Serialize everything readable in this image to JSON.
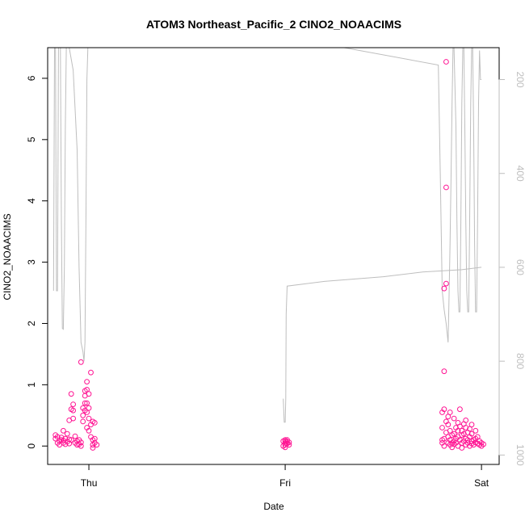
{
  "chart_data": {
    "type": "scatter",
    "title": "ATOM3 Northeast_Pacific_2 CINO2_NOAACIMS",
    "xlabel": "Date",
    "ylabel": "CINO2_NOAACIMS",
    "x_ticks": [
      {
        "label": "Thu",
        "value": 1.0
      },
      {
        "label": "Fri",
        "value": 2.0
      },
      {
        "label": "Sat",
        "value": 3.0
      }
    ],
    "xlim": [
      0.79,
      3.09
    ],
    "ylim": [
      -0.3,
      6.5
    ],
    "y_ticks": [
      0,
      1,
      2,
      3,
      4,
      5,
      6
    ],
    "right_axis": {
      "color": "#bebebe",
      "ticks": [
        200,
        400,
        600,
        800,
        1000
      ],
      "lim": [
        1020,
        132
      ]
    },
    "grid": false,
    "series": [
      {
        "marker": "open-circle",
        "color": "#ff1493",
        "points": [
          [
            0.83,
            0.18
          ],
          [
            0.83,
            0.12
          ],
          [
            0.84,
            0.05
          ],
          [
            0.84,
            0.15
          ],
          [
            0.85,
            0.08
          ],
          [
            0.85,
            0.02
          ],
          [
            0.86,
            0.1
          ],
          [
            0.86,
            0.14
          ],
          [
            0.87,
            0.05
          ],
          [
            0.87,
            0.25
          ],
          [
            0.87,
            0.09
          ],
          [
            0.88,
            0.12
          ],
          [
            0.88,
            0.03
          ],
          [
            0.89,
            0.07
          ],
          [
            0.89,
            0.2
          ],
          [
            0.9,
            0.11
          ],
          [
            0.9,
            0.04
          ],
          [
            0.9,
            0.42
          ],
          [
            0.91,
            0.85
          ],
          [
            0.91,
            0.6
          ],
          [
            0.91,
            0.1
          ],
          [
            0.92,
            0.45
          ],
          [
            0.92,
            0.68
          ],
          [
            0.92,
            0.58
          ],
          [
            0.93,
            0.16
          ],
          [
            0.93,
            0.05
          ],
          [
            0.94,
            0.08
          ],
          [
            0.94,
            0.02
          ],
          [
            0.95,
            0.1
          ],
          [
            0.95,
            0.03
          ],
          [
            0.96,
            0.06
          ],
          [
            0.96,
            0.0
          ],
          [
            0.96,
            1.37
          ],
          [
            0.97,
            0.5
          ],
          [
            0.97,
            0.4
          ],
          [
            0.97,
            0.62
          ],
          [
            0.98,
            0.58
          ],
          [
            0.98,
            0.7
          ],
          [
            0.98,
            0.82
          ],
          [
            0.98,
            0.9
          ],
          [
            0.99,
            0.55
          ],
          [
            0.99,
            0.7
          ],
          [
            0.99,
            0.92
          ],
          [
            0.99,
            1.05
          ],
          [
            1.0,
            0.85
          ],
          [
            1.0,
            0.62
          ],
          [
            1.0,
            0.45
          ],
          [
            1.01,
            1.2
          ],
          [
            1.01,
            0.35
          ],
          [
            1.01,
            0.15
          ],
          [
            1.02,
            0.4
          ],
          [
            1.02,
            0.1
          ],
          [
            1.02,
            0.02
          ],
          [
            1.02,
            -0.03
          ],
          [
            1.03,
            0.38
          ],
          [
            1.03,
            0.12
          ],
          [
            1.03,
            0.05
          ],
          [
            1.04,
            0.02
          ],
          [
            1.0,
            0.25
          ],
          [
            0.99,
            0.3
          ],
          [
            1.99,
            0.0
          ],
          [
            1.99,
            0.08
          ],
          [
            2.0,
            0.02
          ],
          [
            2.0,
            0.1
          ],
          [
            2.0,
            0.05
          ],
          [
            2.0,
            -0.02
          ],
          [
            2.01,
            0.07
          ],
          [
            2.01,
            0.04
          ],
          [
            2.01,
            0.1
          ],
          [
            2.02,
            0.02
          ],
          [
            2.02,
            0.06
          ],
          [
            2.0,
            0.08
          ],
          [
            2.8,
            0.05
          ],
          [
            2.8,
            0.3
          ],
          [
            2.8,
            0.1
          ],
          [
            2.8,
            0.55
          ],
          [
            2.81,
            0.6
          ],
          [
            2.81,
            0.12
          ],
          [
            2.81,
            0.0
          ],
          [
            2.81,
            1.22
          ],
          [
            2.81,
            2.57
          ],
          [
            2.82,
            2.65
          ],
          [
            2.82,
            4.22
          ],
          [
            2.82,
            6.27
          ],
          [
            2.82,
            0.22
          ],
          [
            2.82,
            0.4
          ],
          [
            2.83,
            0.05
          ],
          [
            2.83,
            0.15
          ],
          [
            2.83,
            0.35
          ],
          [
            2.84,
            0.02
          ],
          [
            2.84,
            0.1
          ],
          [
            2.84,
            0.25
          ],
          [
            2.85,
            0.05
          ],
          [
            2.85,
            0.18
          ],
          [
            2.85,
            -0.02
          ],
          [
            2.86,
            0.08
          ],
          [
            2.86,
            0.2
          ],
          [
            2.86,
            0.03
          ],
          [
            2.87,
            0.12
          ],
          [
            2.87,
            0.3
          ],
          [
            2.87,
            0.05
          ],
          [
            2.88,
            0.15
          ],
          [
            2.88,
            0.0
          ],
          [
            2.88,
            0.25
          ],
          [
            2.89,
            0.1
          ],
          [
            2.89,
            0.32
          ],
          [
            2.89,
            0.6
          ],
          [
            2.9,
            0.05
          ],
          [
            2.9,
            0.18
          ],
          [
            2.9,
            -0.03
          ],
          [
            2.91,
            0.2
          ],
          [
            2.91,
            0.36
          ],
          [
            2.91,
            0.08
          ],
          [
            2.92,
            0.12
          ],
          [
            2.92,
            0.3
          ],
          [
            2.92,
            0.02
          ],
          [
            2.93,
            0.22
          ],
          [
            2.93,
            0.05
          ],
          [
            2.93,
            0.1
          ],
          [
            2.94,
            0.15
          ],
          [
            2.94,
            0.28
          ],
          [
            2.94,
            0.0
          ],
          [
            2.95,
            0.08
          ],
          [
            2.95,
            0.2
          ],
          [
            2.95,
            0.04
          ],
          [
            2.96,
            0.1
          ],
          [
            2.96,
            0.02
          ],
          [
            2.97,
            0.12
          ],
          [
            2.97,
            0.06
          ],
          [
            2.98,
            0.04
          ],
          [
            2.98,
            0.15
          ],
          [
            2.99,
            0.02
          ],
          [
            2.99,
            0.08
          ],
          [
            3.0,
            0.05
          ],
          [
            3.0,
            0.0
          ],
          [
            3.01,
            0.03
          ],
          [
            2.84,
            0.55
          ],
          [
            2.86,
            0.45
          ],
          [
            2.88,
            0.38
          ],
          [
            2.9,
            0.25
          ],
          [
            2.92,
            0.42
          ],
          [
            2.95,
            0.35
          ],
          [
            2.97,
            0.25
          ],
          [
            2.83,
            0.48
          ]
        ]
      },
      {
        "marker": "line",
        "color": "#bebebe",
        "axis": "right",
        "points": [
          [
            0.82,
            650
          ],
          [
            0.825,
            132
          ],
          [
            0.83,
            132
          ],
          [
            0.835,
            650
          ],
          [
            0.84,
            650
          ],
          [
            0.845,
            132
          ],
          [
            0.85,
            132
          ],
          [
            0.855,
            132
          ],
          [
            0.86,
            500
          ],
          [
            0.865,
            730
          ],
          [
            0.87,
            732
          ],
          [
            0.875,
            600
          ],
          [
            0.88,
            300
          ],
          [
            0.885,
            132
          ],
          [
            0.9,
            132
          ],
          [
            0.92,
            180
          ],
          [
            0.94,
            350
          ],
          [
            0.95,
            600
          ],
          [
            0.96,
            760
          ],
          [
            0.97,
            780
          ],
          [
            0.975,
            800
          ],
          [
            0.98,
            760
          ],
          [
            0.985,
            500
          ],
          [
            0.99,
            200
          ],
          [
            0.995,
            132
          ],
          [
            1.0,
            132
          ],
          [
            1.05,
            132
          ],
          [
            1.9,
            132
          ],
          [
            2.3,
            132
          ],
          [
            2.78,
            169
          ],
          [
            2.79,
            400
          ],
          [
            2.8,
            650
          ],
          [
            2.81,
            690
          ],
          [
            2.82,
            720
          ],
          [
            2.83,
            760
          ],
          [
            2.835,
            660
          ],
          [
            2.84,
            550
          ],
          [
            2.845,
            400
          ],
          [
            2.85,
            250
          ],
          [
            2.855,
            132
          ],
          [
            2.86,
            132
          ],
          [
            2.87,
            300
          ],
          [
            2.875,
            500
          ],
          [
            2.88,
            650
          ],
          [
            2.885,
            695
          ],
          [
            2.89,
            695
          ],
          [
            2.895,
            500
          ],
          [
            2.9,
            250
          ],
          [
            2.905,
            132
          ],
          [
            2.91,
            132
          ],
          [
            2.915,
            300
          ],
          [
            2.92,
            500
          ],
          [
            2.925,
            650
          ],
          [
            2.93,
            695
          ],
          [
            2.935,
            695
          ],
          [
            2.94,
            500
          ],
          [
            2.945,
            250
          ],
          [
            2.95,
            132
          ],
          [
            2.955,
            132
          ],
          [
            2.96,
            300
          ],
          [
            2.965,
            550
          ],
          [
            2.97,
            695
          ],
          [
            2.975,
            695
          ],
          [
            2.98,
            500
          ],
          [
            2.985,
            250
          ],
          [
            2.99,
            138
          ],
          [
            2.995,
            200
          ],
          [
            3.0,
            200
          ]
        ]
      },
      {
        "marker": "line",
        "color": "#bebebe",
        "axis": "right",
        "points": [
          [
            1.99,
            880
          ],
          [
            1.995,
            930
          ],
          [
            2.0,
            930
          ],
          [
            2.003,
            880
          ],
          [
            2.005,
            700
          ],
          [
            2.01,
            640
          ],
          [
            2.2,
            630
          ],
          [
            2.5,
            620
          ],
          [
            2.7,
            610
          ],
          [
            2.9,
            605
          ],
          [
            3.0,
            600
          ]
        ]
      }
    ]
  }
}
